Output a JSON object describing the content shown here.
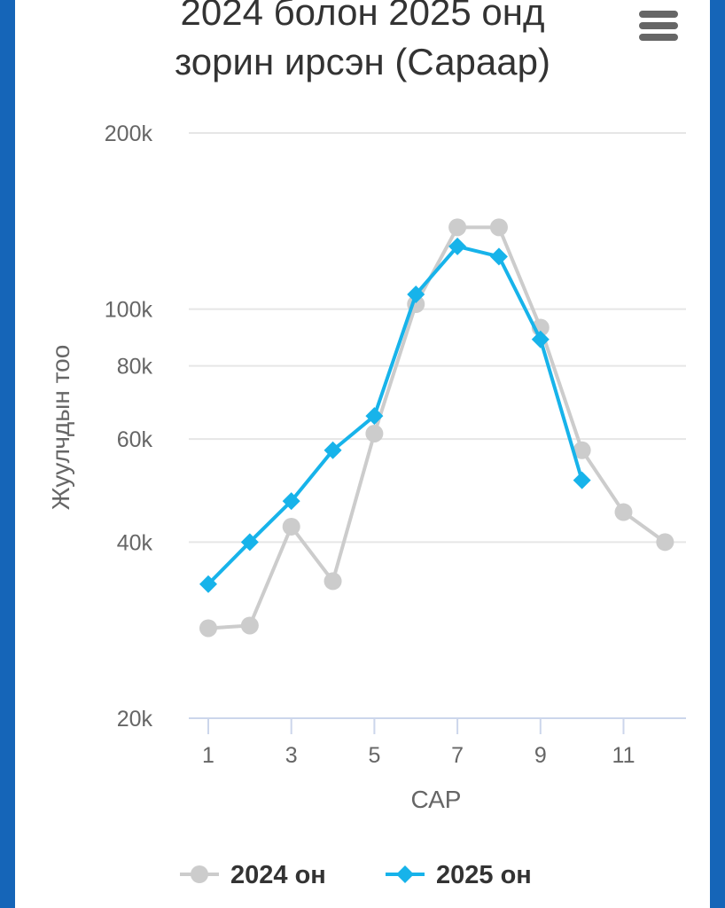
{
  "chart_data": {
    "type": "line",
    "title_line1": "2024 болон 2025 онд",
    "title_line2": "зорин ирсэн (Сараар)",
    "xlabel": "САР",
    "ylabel": "Жуулчдын тоо",
    "yscale": "log",
    "ylim": [
      20000,
      200000
    ],
    "yticks": [
      {
        "value": 20000,
        "label": "20k"
      },
      {
        "value": 40000,
        "label": "40k"
      },
      {
        "value": 60000,
        "label": "60k"
      },
      {
        "value": 80000,
        "label": "80k"
      },
      {
        "value": 100000,
        "label": "100k"
      },
      {
        "value": 200000,
        "label": "200k"
      }
    ],
    "xlim": [
      1,
      12
    ],
    "xticks": [
      1,
      3,
      5,
      7,
      9,
      11
    ],
    "grid": true,
    "legend_position": "bottom",
    "series": [
      {
        "name": "2024 он",
        "color": "#cccccc",
        "marker": "circle",
        "x": [
          1,
          2,
          3,
          4,
          5,
          6,
          7,
          8,
          9,
          10,
          11,
          12
        ],
        "values": [
          28500,
          28800,
          42500,
          34300,
          61300,
          102000,
          138000,
          138000,
          93000,
          57400,
          45000,
          40000
        ]
      },
      {
        "name": "2025 он",
        "color": "#17b3ea",
        "marker": "diamond",
        "x": [
          1,
          2,
          3,
          4,
          5,
          6,
          7,
          8,
          9,
          10
        ],
        "values": [
          33900,
          40000,
          47000,
          57400,
          65700,
          106000,
          128000,
          123000,
          88800,
          51000
        ]
      }
    ]
  },
  "colors": {
    "background": "#1565b8",
    "grid": "#e6e6e6",
    "axis": "#ccd6eb",
    "text": "#666666",
    "title": "#333333"
  },
  "menu": {
    "icon": "hamburger-icon"
  }
}
